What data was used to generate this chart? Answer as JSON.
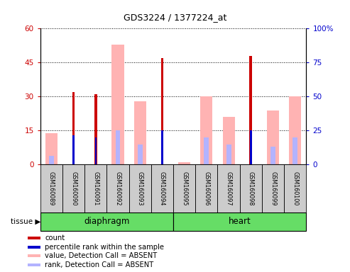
{
  "title": "GDS3224 / 1377224_at",
  "samples": [
    "GSM160089",
    "GSM160090",
    "GSM160091",
    "GSM160092",
    "GSM160093",
    "GSM160094",
    "GSM160095",
    "GSM160096",
    "GSM160097",
    "GSM160098",
    "GSM160099",
    "GSM160100"
  ],
  "count": [
    0,
    32,
    31,
    0,
    0,
    47,
    0,
    0,
    0,
    48,
    0,
    0
  ],
  "percentile_rank": [
    0,
    13,
    12,
    0,
    0,
    15,
    0,
    0,
    0,
    15,
    0,
    0
  ],
  "value_absent": [
    14,
    0,
    0,
    53,
    28,
    0,
    1,
    30,
    21,
    0,
    24,
    30
  ],
  "rank_absent": [
    4,
    0,
    0,
    15,
    9,
    0,
    0,
    12,
    9,
    0,
    8,
    12
  ],
  "ylim_left": [
    0,
    60
  ],
  "ylim_right": [
    0,
    100
  ],
  "yticks_left": [
    0,
    15,
    30,
    45,
    60
  ],
  "yticks_right": [
    0,
    25,
    50,
    75,
    100
  ],
  "ytick_labels_left": [
    "0",
    "15",
    "30",
    "45",
    "60"
  ],
  "ytick_labels_right": [
    "0",
    "25",
    "50",
    "75",
    "100%"
  ],
  "color_count": "#cc0000",
  "color_rank": "#0000cc",
  "color_value_absent": "#ffb3b3",
  "color_rank_absent": "#b3b3ff",
  "color_group_green": "#66dd66",
  "color_xtick_bg": "#cccccc",
  "bw_wide": 0.55,
  "bw_mid": 0.22,
  "bw_narrow": 0.12,
  "bw_vnarrow": 0.08,
  "legend_items": [
    {
      "label": "count",
      "color": "#cc0000"
    },
    {
      "label": "percentile rank within the sample",
      "color": "#0000cc"
    },
    {
      "label": "value, Detection Call = ABSENT",
      "color": "#ffb3b3"
    },
    {
      "label": "rank, Detection Call = ABSENT",
      "color": "#b3b3ff"
    }
  ],
  "tissue_label": "tissue",
  "group_labels": [
    "diaphragm",
    "heart"
  ],
  "diaphragm_indices": [
    0,
    1,
    2,
    3,
    4,
    5
  ],
  "heart_indices": [
    6,
    7,
    8,
    9,
    10,
    11
  ]
}
